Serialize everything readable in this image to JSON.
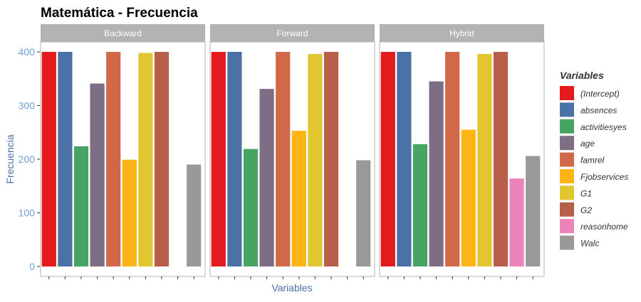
{
  "chart_data": {
    "type": "bar",
    "title": "Matemática - Frecuencia",
    "xlabel": "Variables",
    "ylabel": "Frecuencia",
    "ylim": [
      0,
      420
    ],
    "yticks": [
      0,
      100,
      200,
      300,
      400
    ],
    "legend_title": "Variables",
    "legend_position": "right",
    "grid": false,
    "categories": [
      "(Intercept)",
      "absences",
      "activitiesyes",
      "age",
      "famrel",
      "Fjobservices",
      "G1",
      "G2",
      "reasonhome",
      "Walc"
    ],
    "colors": [
      "#E41A1C",
      "#4A72A6",
      "#48A462",
      "#7E6E85",
      "#D16948",
      "#FDB415",
      "#E1C62F",
      "#B75F49",
      "#EC83BA",
      "#999999"
    ],
    "facets": [
      {
        "name": "Backward",
        "values": [
          400,
          400,
          224,
          341,
          400,
          199,
          398,
          400,
          0,
          190
        ]
      },
      {
        "name": "Forward",
        "values": [
          400,
          400,
          219,
          331,
          400,
          253,
          396,
          400,
          0,
          198
        ]
      },
      {
        "name": "Hybrid",
        "values": [
          400,
          400,
          228,
          345,
          400,
          255,
          396,
          400,
          164,
          206
        ]
      }
    ]
  }
}
